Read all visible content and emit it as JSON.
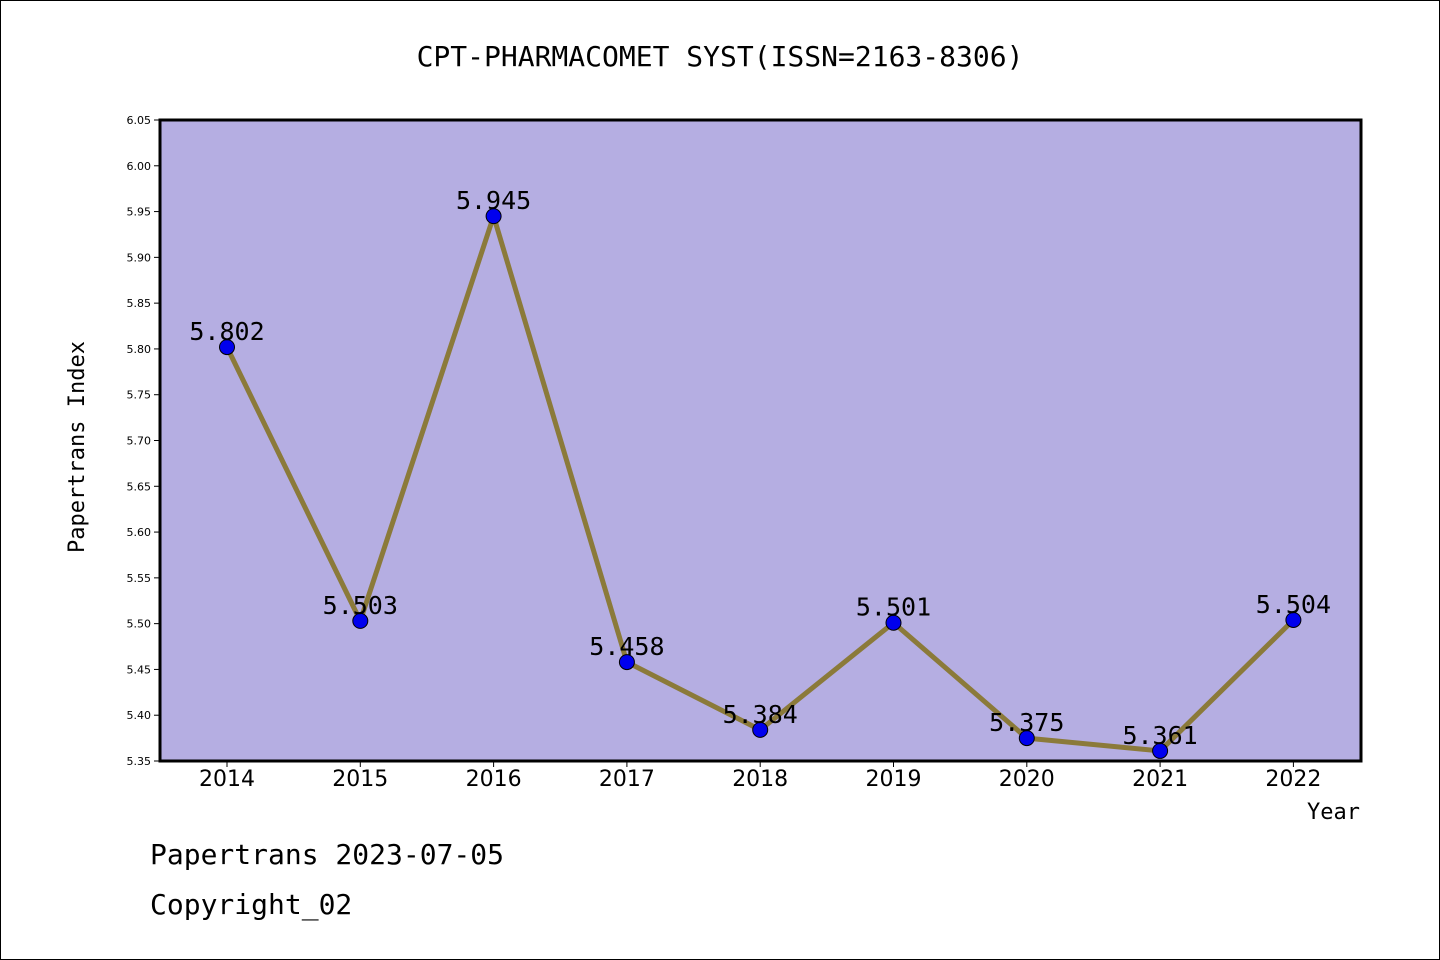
{
  "chart_data": {
    "type": "line",
    "title": "CPT-PHARMACOMET SYST(ISSN=2163-8306)",
    "xlabel": "Year",
    "ylabel": "Papertrans Index",
    "categories": [
      "2014",
      "2015",
      "2016",
      "2017",
      "2018",
      "2019",
      "2020",
      "2021",
      "2022"
    ],
    "values": [
      5.802,
      5.503,
      5.945,
      5.458,
      5.384,
      5.501,
      5.375,
      5.361,
      5.504
    ],
    "data_labels": [
      "5.802",
      "5.503",
      "5.945",
      "5.458",
      "5.384",
      "5.501",
      "5.375",
      "5.361",
      "5.504"
    ],
    "ylim": [
      5.35,
      6.05
    ],
    "yticks": [
      "5.35",
      "5.40",
      "5.45",
      "5.50",
      "5.55",
      "5.60",
      "5.65",
      "5.70",
      "5.75",
      "5.80",
      "5.85",
      "5.90",
      "5.95",
      "6.00",
      "6.05"
    ],
    "grid": false,
    "colors": {
      "plot_background": "#b5aee2",
      "line": "#8b7a3a",
      "marker": "#0000ee"
    }
  },
  "footer": {
    "date_line": "Papertrans 2023-07-05",
    "copyright_line": "Copyright_02"
  }
}
